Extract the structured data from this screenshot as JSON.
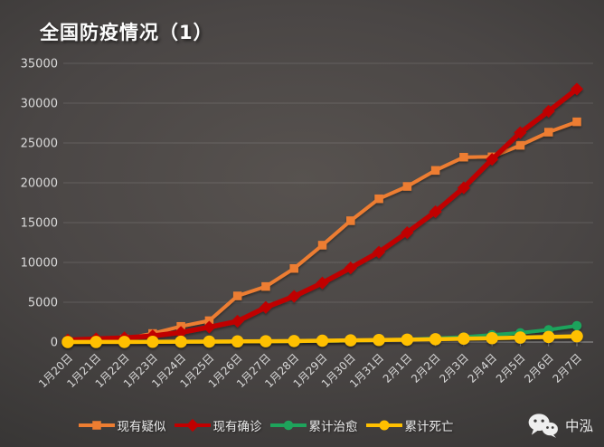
{
  "watermark": {
    "icon": "wechat-icon",
    "text": "中泓"
  },
  "chart_data": {
    "type": "line",
    "title": "全国防疫情况（1）",
    "categories": [
      "1月20日",
      "1月21日",
      "1月22日",
      "1月23日",
      "1月24日",
      "1月25日",
      "1月26日",
      "1月27日",
      "1月28日",
      "1月29日",
      "1月30日",
      "1月31日",
      "2月1日",
      "2月2日",
      "2月3日",
      "2月4日",
      "2月5日",
      "2月6日",
      "2月7日"
    ],
    "series": [
      {
        "name": "现有疑似",
        "slug": "existing-suspected",
        "color": "#ED7D31",
        "marker": "square",
        "line_width": 4,
        "marker_size": 9.5,
        "values": [
          54,
          37,
          393,
          1072,
          1965,
          2684,
          5794,
          6973,
          9239,
          12167,
          15238,
          17988,
          19544,
          21558,
          23214,
          23260,
          24702,
          26359,
          27657
        ]
      },
      {
        "name": "现有确诊",
        "slug": "existing-confirmed",
        "color": "#C00000",
        "marker": "diamond",
        "line_width": 5.5,
        "marker_size": 10,
        "values": [
          260,
          403,
          526,
          771,
          1208,
          1870,
          2613,
          4349,
          5739,
          7417,
          9308,
          11289,
          13748,
          16369,
          19381,
          22942,
          26302,
          28985,
          31774
        ]
      },
      {
        "name": "累计治愈",
        "slug": "cumulative-cured",
        "color": "#1EA35B",
        "marker": "circle",
        "line_width": 4,
        "marker_size": 10.5,
        "values": [
          25,
          25,
          28,
          34,
          38,
          49,
          51,
          60,
          103,
          124,
          171,
          243,
          328,
          475,
          632,
          892,
          1153,
          1540,
          2050
        ]
      },
      {
        "name": "累计死亡",
        "slug": "cumulative-deaths",
        "color": "#FFC000",
        "marker": "circle",
        "line_width": 4.5,
        "marker_size": 13.5,
        "values": [
          6,
          9,
          17,
          25,
          41,
          56,
          80,
          106,
          132,
          170,
          213,
          259,
          304,
          361,
          425,
          490,
          563,
          636,
          722
        ]
      }
    ],
    "ylim": [
      0,
      35000
    ],
    "ytick_step": 5000,
    "ytick_labels": [
      "0",
      "5000",
      "10000",
      "15000",
      "20000",
      "25000",
      "30000",
      "35000"
    ],
    "grid": true,
    "legend_position": "bottom",
    "colors": {
      "background": "#4a4645",
      "grid_line": "rgba(255,255,255,0.13)",
      "axis_line": "#9a9a9a",
      "tick_label": "#d9d9d9",
      "title_text": "#fdfdfd"
    }
  }
}
